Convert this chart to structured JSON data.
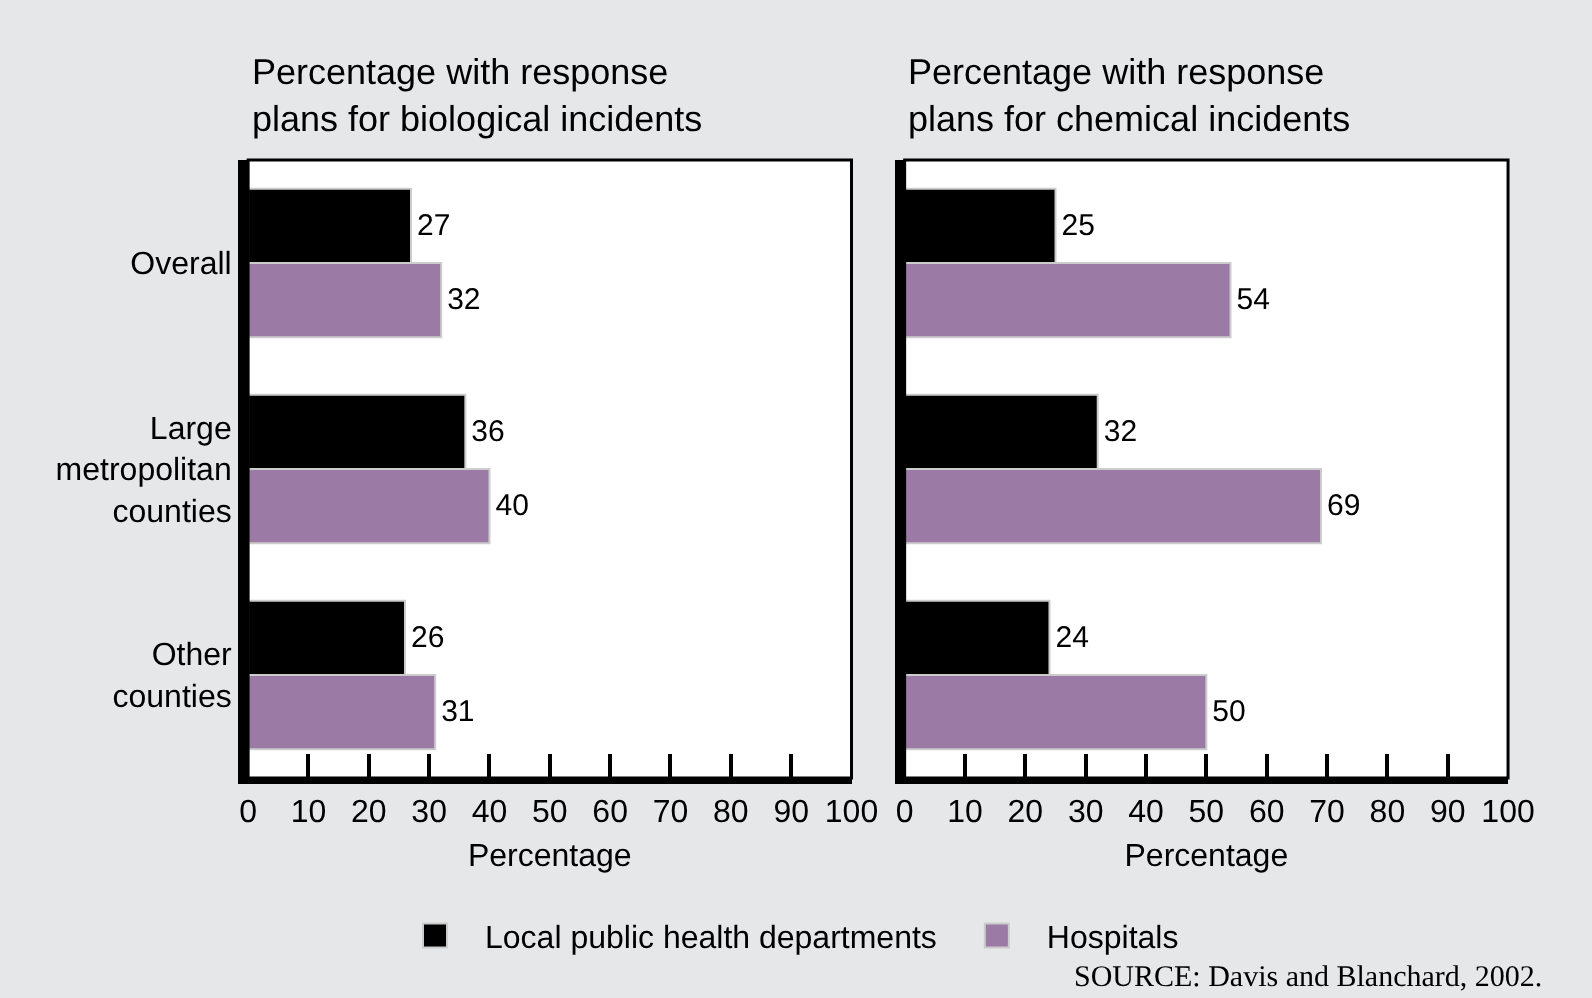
{
  "chart_data": [
    {
      "type": "bar",
      "orientation": "horizontal",
      "title": "Percentage with response plans for biological incidents",
      "xlabel": "Percentage",
      "categories": [
        "Overall",
        "Large metropolitan counties",
        "Other counties"
      ],
      "series": [
        {
          "name": "Local public health departments",
          "color": "#000000",
          "values": [
            27,
            36,
            26
          ]
        },
        {
          "name": "Hospitals",
          "color": "#9b7aa6",
          "values": [
            32,
            40,
            31
          ]
        }
      ],
      "xlim": [
        0,
        100
      ],
      "xticks": [
        0,
        10,
        20,
        30,
        40,
        50,
        60,
        70,
        80,
        90,
        100
      ],
      "data_labels": true,
      "legend": "bottom",
      "grid": false
    },
    {
      "type": "bar",
      "orientation": "horizontal",
      "title": "Percentage with response plans for chemical incidents",
      "xlabel": "Percentage",
      "categories": [
        "Overall",
        "Large metropolitan counties",
        "Other counties"
      ],
      "series": [
        {
          "name": "Local public health departments",
          "color": "#000000",
          "values": [
            25,
            32,
            24
          ]
        },
        {
          "name": "Hospitals",
          "color": "#9b7aa6",
          "values": [
            54,
            69,
            50
          ]
        }
      ],
      "xlim": [
        0,
        100
      ],
      "xticks": [
        0,
        10,
        20,
        30,
        40,
        50,
        60,
        70,
        80,
        90,
        100
      ],
      "data_labels": true,
      "legend": "bottom",
      "grid": false,
      "tick_labels": "x",
      "annotations": [
        "SOURCE: Davis and Blanchard, 2002."
      ]
    }
  ]
}
